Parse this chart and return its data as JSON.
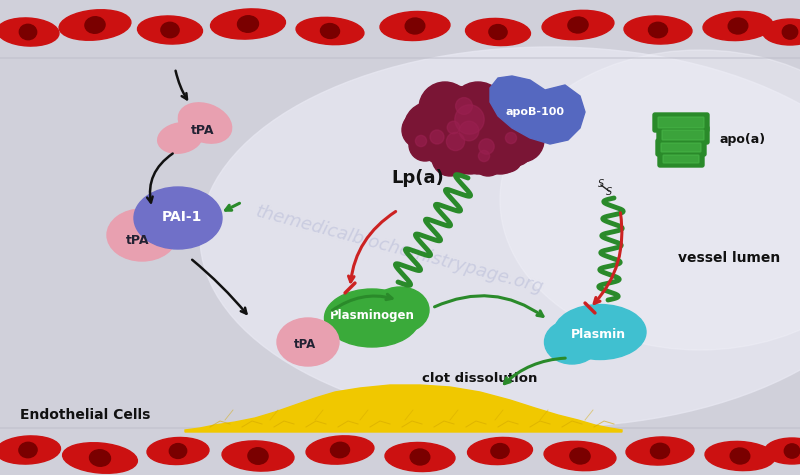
{
  "bg_color": "#d8d8e2",
  "rbc_color": "#cc1111",
  "rbc_nucleus_color": "#7a0000",
  "tpa_color": "#e8a0b0",
  "pai1_color": "#7070c8",
  "lp_dark_color": "#7a1535",
  "apob_color": "#5568c0",
  "apo_green": "#2a8a2a",
  "plasminogen_color": "#3aaa3a",
  "plasmin_color": "#40c0d0",
  "clot_color": "#f0c800",
  "clot_line_color": "#d4a800",
  "arrow_black": "#111111",
  "arrow_green": "#2a8a2a",
  "arrow_red": "#cc2222",
  "watermark_color": "#b8bcd8",
  "watermark_text": "themedicalbiochemistrypage.org",
  "label_endothelial": "Endothelial Cells",
  "label_vessel": "vessel lumen",
  "label_lpa": "Lp(a)",
  "label_apob": "apoB-100",
  "label_apoa": "apo(a)",
  "label_tpa": "tPA",
  "label_pai1": "PAI-1",
  "label_plasminogen": "Plasminogen",
  "label_plasmin": "Plasmin",
  "label_clot": "clot dissolution"
}
